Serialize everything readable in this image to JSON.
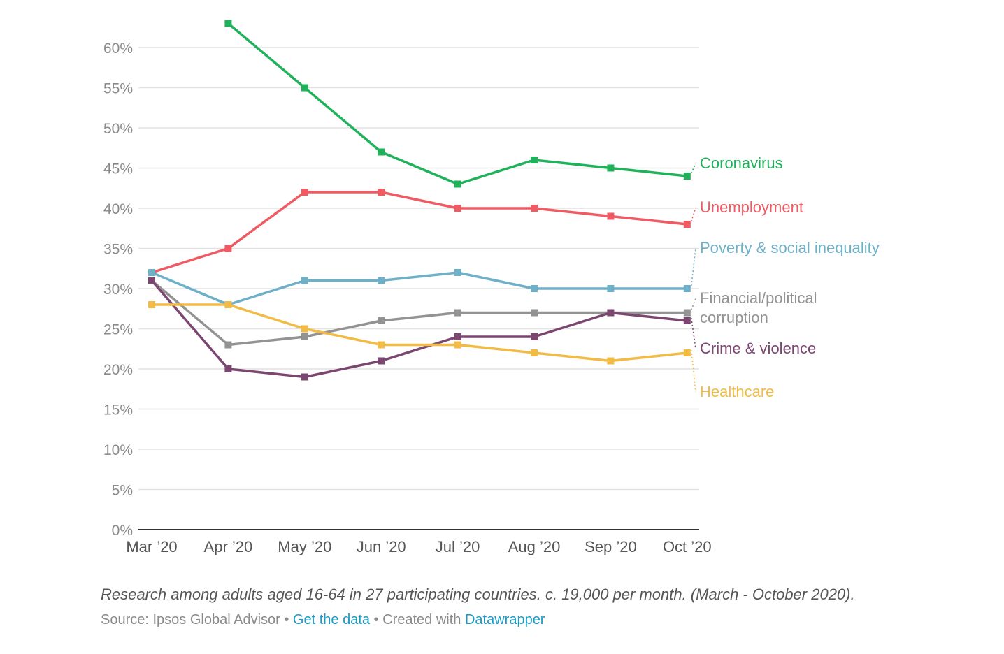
{
  "chart_data": {
    "type": "line",
    "categories": [
      "Mar ’20",
      "Apr ’20",
      "May ’20",
      "Jun ’20",
      "Jul ’20",
      "Aug ’20",
      "Sep ’20",
      "Oct ’20"
    ],
    "ylim": [
      0,
      65
    ],
    "yticks": [
      0,
      5,
      10,
      15,
      20,
      25,
      30,
      35,
      40,
      45,
      50,
      55,
      60
    ],
    "ytick_suffix": "%",
    "grid": true,
    "legend": "direct labels at right end of lines",
    "series": [
      {
        "name": "Coronavirus",
        "color": "#1fb25a",
        "values": [
          null,
          63,
          55,
          47,
          43,
          46,
          45,
          44
        ]
      },
      {
        "name": "Unemployment",
        "color": "#f05a63",
        "values": [
          32,
          35,
          42,
          42,
          40,
          40,
          39,
          38
        ]
      },
      {
        "name": "Poverty & social inequality",
        "color": "#6fb0c9",
        "values": [
          32,
          28,
          31,
          31,
          32,
          30,
          30,
          30
        ]
      },
      {
        "name": "Financial/political corruption",
        "color": "#939393",
        "values": [
          31,
          23,
          24,
          26,
          27,
          27,
          27,
          27
        ]
      },
      {
        "name": "Crime & violence",
        "color": "#7b4771",
        "values": [
          31,
          20,
          19,
          21,
          24,
          24,
          27,
          26
        ]
      },
      {
        "name": "Healthcare",
        "color": "#f1bb45",
        "values": [
          28,
          28,
          25,
          23,
          23,
          22,
          21,
          22
        ]
      }
    ]
  },
  "notes": "Research among adults aged 16-64 in 27 participating countries. c. 19,000 per month. (March - October 2020).",
  "footer": {
    "source_text": "Source: Ipsos Global Advisor",
    "separator": " • ",
    "get_data_link": "Get the data",
    "created_text": "Created with",
    "datawrapper_link": "Datawrapper",
    "link_color": "#1a9bc7"
  }
}
